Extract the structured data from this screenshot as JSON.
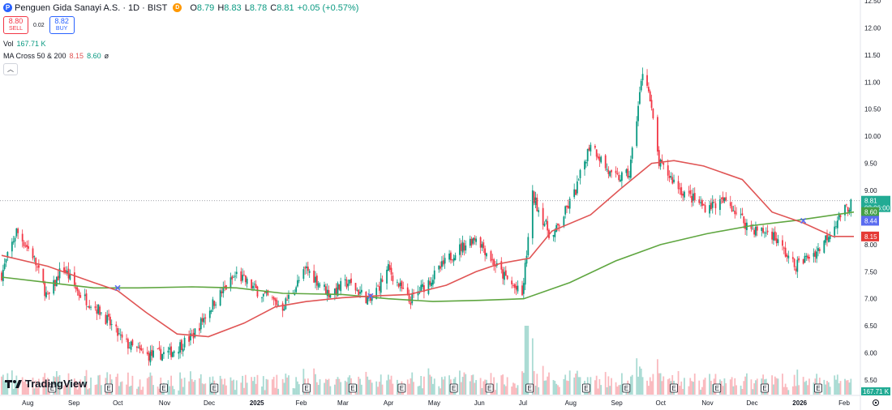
{
  "header": {
    "symbol_icon": "P",
    "title": "Penguen Gida Sanayi A.S. · 1D · BIST",
    "market_status_icon": "D",
    "ohlc": [
      {
        "k": "O",
        "v": "8.79"
      },
      {
        "k": "H",
        "v": "8.83"
      },
      {
        "k": "L",
        "v": "8.78"
      },
      {
        "k": "C",
        "v": "8.81"
      },
      {
        "k": "",
        "v": "+0.05 (+0.57%)"
      }
    ],
    "sell": {
      "price": "8.80",
      "label": "SELL"
    },
    "spread": "0.02",
    "buy": {
      "price": "8.82",
      "label": "BUY"
    },
    "volume": {
      "label": "Vol",
      "value": "167.71 K"
    },
    "ma": {
      "label": "MA Cross 50 & 200",
      "v1": "8.15",
      "v2": "8.60",
      "v3": "ø"
    },
    "collapse_icon": "chevron-up-icon"
  },
  "logo": {
    "text": "TradingView"
  },
  "colors": {
    "up": "#089981",
    "down": "#f23645",
    "ma50": "#e05555",
    "ma200": "#5fa640",
    "cross": "#5a6cf0",
    "price_badge": "#22ab94"
  },
  "chart_data": {
    "type": "candlestick",
    "y_axis": {
      "min": 5.25,
      "max": 12.5,
      "ticks": [
        "5.50",
        "6.00",
        "6.50",
        "7.00",
        "7.50",
        "8.00",
        "8.50",
        "9.00",
        "9.50",
        "10.00",
        "10.50",
        "11.00",
        "11.50",
        "12.00",
        "12.50"
      ]
    },
    "x_axis": {
      "labels": [
        "Aug",
        "Sep",
        "Oct",
        "Nov",
        "Dec",
        "2025",
        "Feb",
        "Mar",
        "Apr",
        "May",
        "Jun",
        "Jul",
        "Aug",
        "Sep",
        "Oct",
        "Nov",
        "Dec",
        "2026",
        "Feb"
      ]
    },
    "earnings_markers": [
      "E",
      "E",
      "E",
      "E",
      "E",
      "E",
      "E",
      "E",
      "E",
      "E",
      "E",
      "E",
      "E",
      "E",
      "E",
      "E"
    ],
    "close_path": [
      [
        "2024-07-15",
        7.45
      ],
      [
        "2024-07-25",
        8.25
      ],
      [
        "2024-08-05",
        7.8
      ],
      [
        "2024-08-15",
        7.0
      ],
      [
        "2024-08-25",
        7.6
      ],
      [
        "2024-09-05",
        7.1
      ],
      [
        "2024-09-20",
        6.75
      ],
      [
        "2024-10-05",
        6.2
      ],
      [
        "2024-10-20",
        5.95
      ],
      [
        "2024-11-05",
        6.0
      ],
      [
        "2024-11-20",
        6.3
      ],
      [
        "2024-12-05",
        6.95
      ],
      [
        "2024-12-20",
        7.45
      ],
      [
        "2025-01-05",
        7.1
      ],
      [
        "2025-01-20",
        6.85
      ],
      [
        "2025-02-05",
        7.55
      ],
      [
        "2025-02-20",
        7.1
      ],
      [
        "2025-03-05",
        7.3
      ],
      [
        "2025-03-20",
        6.95
      ],
      [
        "2025-04-01",
        7.55
      ],
      [
        "2025-04-15",
        6.95
      ],
      [
        "2025-05-01",
        7.4
      ],
      [
        "2025-05-15",
        7.85
      ],
      [
        "2025-05-30",
        8.15
      ],
      [
        "2025-06-15",
        7.5
      ],
      [
        "2025-06-30",
        7.05
      ],
      [
        "2025-07-07",
        8.9
      ],
      [
        "2025-07-20",
        8.1
      ],
      [
        "2025-08-05",
        9.0
      ],
      [
        "2025-08-15",
        9.9
      ],
      [
        "2025-08-30",
        9.2
      ],
      [
        "2025-09-10",
        9.3
      ],
      [
        "2025-09-20",
        11.4
      ],
      [
        "2025-09-30",
        9.5
      ],
      [
        "2025-10-15",
        9.0
      ],
      [
        "2025-10-30",
        8.7
      ],
      [
        "2025-11-15",
        8.8
      ],
      [
        "2025-11-30",
        8.3
      ],
      [
        "2025-12-15",
        8.2
      ],
      [
        "2025-12-30",
        7.6
      ],
      [
        "2026-01-15",
        7.9
      ],
      [
        "2026-01-30",
        8.55
      ],
      [
        "2026-02-08",
        8.81
      ]
    ],
    "ma50": [
      [
        "2024-07-15",
        7.8
      ],
      [
        "2024-08-15",
        7.6
      ],
      [
        "2024-09-15",
        7.3
      ],
      [
        "2024-10-01",
        7.15
      ],
      [
        "2024-10-20",
        6.75
      ],
      [
        "2024-11-10",
        6.35
      ],
      [
        "2024-12-01",
        6.3
      ],
      [
        "2024-12-25",
        6.55
      ],
      [
        "2025-01-15",
        6.85
      ],
      [
        "2025-02-05",
        6.95
      ],
      [
        "2025-03-01",
        7.02
      ],
      [
        "2025-03-20",
        7.05
      ],
      [
        "2025-04-15",
        7.08
      ],
      [
        "2025-05-10",
        7.25
      ],
      [
        "2025-05-30",
        7.5
      ],
      [
        "2025-06-15",
        7.65
      ],
      [
        "2025-07-05",
        7.75
      ],
      [
        "2025-07-20",
        8.25
      ],
      [
        "2025-08-15",
        8.55
      ],
      [
        "2025-09-05",
        9.05
      ],
      [
        "2025-09-25",
        9.5
      ],
      [
        "2025-10-10",
        9.55
      ],
      [
        "2025-10-30",
        9.45
      ],
      [
        "2025-11-25",
        9.2
      ],
      [
        "2025-12-15",
        8.6
      ],
      [
        "2026-01-05",
        8.4
      ],
      [
        "2026-01-25",
        8.15
      ],
      [
        "2026-02-08",
        8.15
      ]
    ],
    "ma200": [
      [
        "2024-07-15",
        7.4
      ],
      [
        "2024-08-15",
        7.3
      ],
      [
        "2024-09-15",
        7.2
      ],
      [
        "2024-10-15",
        7.2
      ],
      [
        "2024-11-20",
        7.22
      ],
      [
        "2024-12-20",
        7.2
      ],
      [
        "2025-01-20",
        7.1
      ],
      [
        "2025-03-01",
        7.08
      ],
      [
        "2025-04-01",
        7.0
      ],
      [
        "2025-05-01",
        6.95
      ],
      [
        "2025-06-01",
        6.97
      ],
      [
        "2025-07-01",
        7.0
      ],
      [
        "2025-08-01",
        7.3
      ],
      [
        "2025-09-01",
        7.7
      ],
      [
        "2025-10-01",
        8.0
      ],
      [
        "2025-11-01",
        8.2
      ],
      [
        "2025-12-01",
        8.35
      ],
      [
        "2026-01-01",
        8.45
      ],
      [
        "2026-02-08",
        8.6
      ]
    ],
    "crosses": [
      [
        "2024-10-01",
        7.2
      ],
      [
        "2025-03-20",
        7.05
      ],
      [
        "2026-01-05",
        8.44
      ]
    ],
    "last_price": {
      "value": "8.81",
      "countdown": "08:06:00"
    },
    "ma_badges": [
      {
        "value": "8.60",
        "series": "ma200"
      },
      {
        "value": "8.44",
        "series": "cross"
      },
      {
        "value": "8.15",
        "series": "ma50"
      }
    ],
    "volume_badge": "167.71 K"
  }
}
